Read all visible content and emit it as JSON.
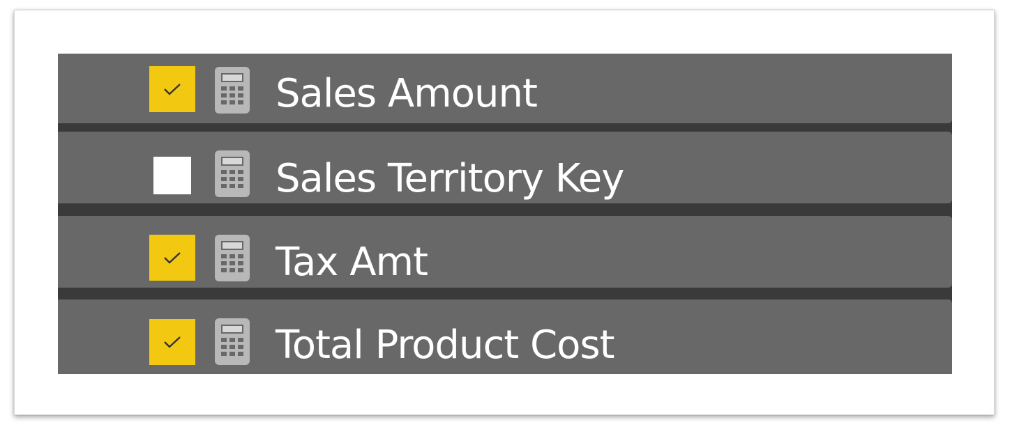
{
  "fields": [
    {
      "label": "Sales Amount",
      "checked": true,
      "icon": "calculator-icon"
    },
    {
      "label": "Sales Territory Key",
      "checked": false,
      "icon": "calculator-icon"
    },
    {
      "label": "Tax Amt",
      "checked": true,
      "icon": "calculator-icon"
    },
    {
      "label": "Total Product Cost",
      "checked": true,
      "icon": "calculator-icon"
    }
  ],
  "colors": {
    "row_background": "#686868",
    "row_separator": "#3a3a3a",
    "checkbox_checked": "#f2c811",
    "checkbox_unchecked": "#ffffff",
    "checkmark": "#333333",
    "label_text": "#ffffff",
    "icon_color": "#b8b8b8"
  }
}
